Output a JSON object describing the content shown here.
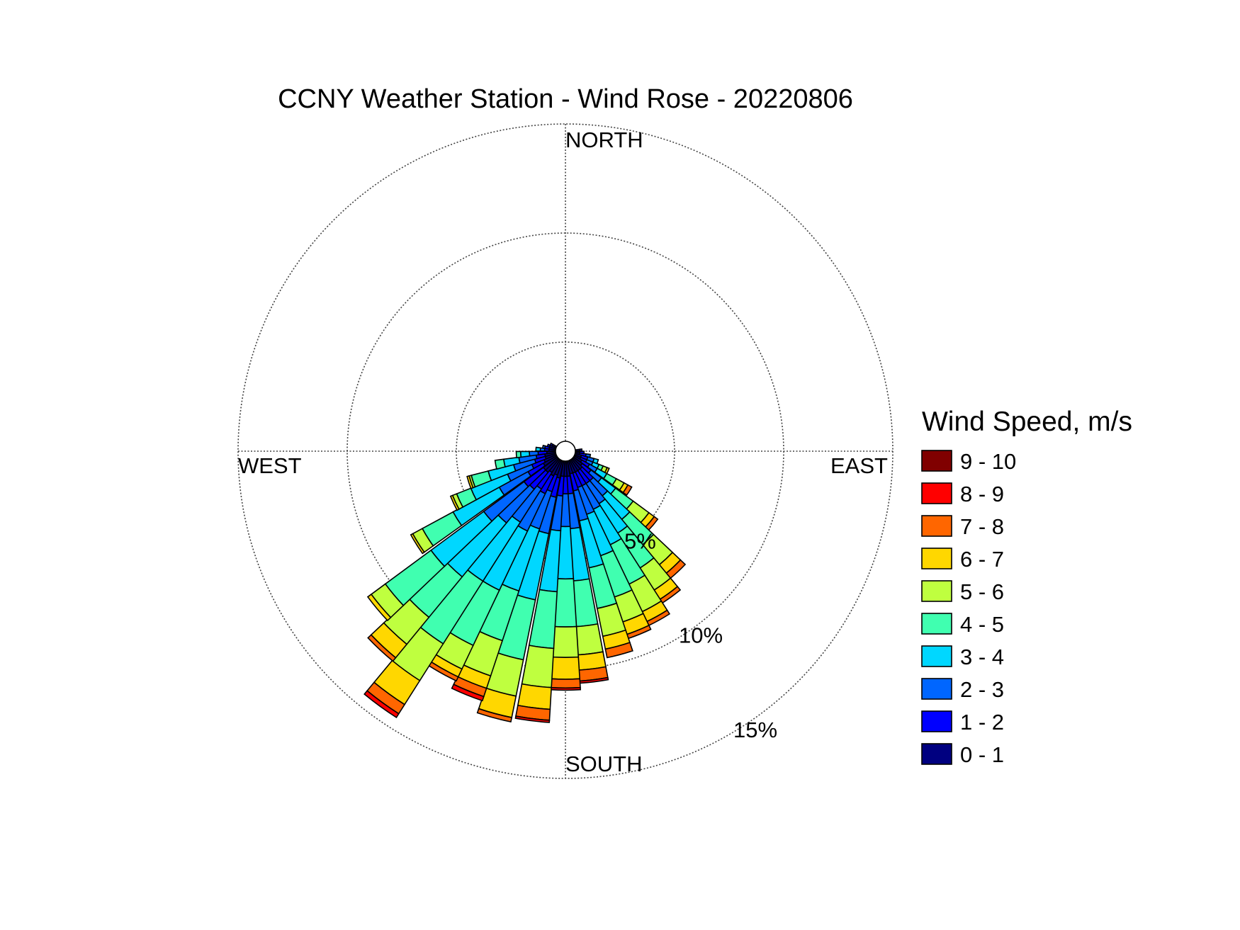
{
  "chart_data": {
    "type": "wind-rose",
    "title": "CCNY Weather Station - Wind Rose - 20220806",
    "directions": {
      "north": "NORTH",
      "south": "SOUTH",
      "east": "EAST",
      "west": "WEST"
    },
    "radial_max": 15,
    "radial_ticks": [
      {
        "value": 5,
        "label": "5%"
      },
      {
        "value": 10,
        "label": "10%"
      },
      {
        "value": 15,
        "label": "15%"
      }
    ],
    "sector_width_deg": 7.2,
    "legend": {
      "title": "Wind Speed, m/s",
      "position": "right",
      "bins": [
        {
          "label": "9 - 10",
          "color": "#800000"
        },
        {
          "label": "8 - 9",
          "color": "#ff0000"
        },
        {
          "label": "7 - 8",
          "color": "#ff6600"
        },
        {
          "label": "6 - 7",
          "color": "#ffd700"
        },
        {
          "label": "5 - 6",
          "color": "#bfff3f"
        },
        {
          "label": "4 - 5",
          "color": "#40ffb0"
        },
        {
          "label": "3 - 4",
          "color": "#00d7ff"
        },
        {
          "label": "2 - 3",
          "color": "#0066ff"
        },
        {
          "label": "1 - 2",
          "color": "#0000ff"
        },
        {
          "label": "0 - 1",
          "color": "#000080"
        }
      ]
    },
    "bin_colors_low_to_high": [
      "#000080",
      "#0000ff",
      "#0066ff",
      "#00d7ff",
      "#40ffb0",
      "#bfff3f",
      "#ffd700",
      "#ff6600",
      "#ff0000",
      "#800000"
    ],
    "sectors_percent_cumulative_by_speed_bin": [
      {
        "direction_deg": 115,
        "cumulative": [
          0.3,
          0.6,
          0.9,
          1.2,
          1.4,
          1.6,
          1.7
        ]
      },
      {
        "direction_deg": 122,
        "cumulative": [
          0.4,
          0.8,
          1.2,
          1.7,
          2.2,
          2.6,
          2.8,
          3.0
        ]
      },
      {
        "direction_deg": 130,
        "cumulative": [
          0.5,
          1.0,
          1.6,
          2.4,
          3.4,
          4.3,
          4.6,
          4.8
        ]
      },
      {
        "direction_deg": 137,
        "cumulative": [
          0.6,
          1.3,
          2.2,
          3.6,
          5.1,
          6.3,
          6.8,
          7.1
        ]
      },
      {
        "direction_deg": 144,
        "cumulative": [
          0.6,
          1.3,
          2.4,
          4.0,
          5.9,
          7.1,
          7.6,
          7.8
        ]
      },
      {
        "direction_deg": 151,
        "cumulative": [
          0.6,
          1.3,
          2.5,
          4.3,
          6.3,
          7.7,
          8.2,
          8.4
        ]
      },
      {
        "direction_deg": 158,
        "cumulative": [
          0.6,
          1.3,
          2.6,
          4.6,
          6.6,
          7.8,
          8.4,
          8.6
        ]
      },
      {
        "direction_deg": 165,
        "cumulative": [
          0.6,
          1.4,
          2.8,
          5.0,
          6.9,
          8.2,
          8.8,
          9.2
        ]
      },
      {
        "direction_deg": 173,
        "cumulative": [
          0.7,
          1.5,
          3.1,
          5.5,
          7.6,
          8.9,
          9.6,
          10.1,
          10.2
        ]
      },
      {
        "direction_deg": 180,
        "cumulative": [
          0.7,
          1.5,
          3.0,
          5.4,
          7.6,
          9.0,
          10.0,
          10.4,
          10.5
        ]
      },
      {
        "direction_deg": 187,
        "cumulative": [
          0.7,
          1.6,
          3.2,
          6.0,
          8.6,
          10.4,
          11.4,
          11.9,
          12.0
        ]
      },
      {
        "direction_deg": 195,
        "cumulative": [
          0.8,
          1.7,
          3.4,
          6.5,
          9.3,
          11.0,
          12.0,
          12.2
        ]
      },
      {
        "direction_deg": 202,
        "cumulative": [
          0.7,
          1.5,
          3.3,
          6.3,
          8.7,
          10.4,
          11.0,
          11.4,
          11.6
        ]
      },
      {
        "direction_deg": 209,
        "cumulative": [
          0.8,
          1.7,
          3.6,
          6.6,
          9.4,
          10.6,
          11.0,
          11.2
        ]
      },
      {
        "direction_deg": 216,
        "cumulative": [
          0.7,
          1.6,
          3.4,
          6.6,
          10.0,
          12.0,
          13.3,
          13.8,
          14.0
        ]
      },
      {
        "direction_deg": 223,
        "cumulative": [
          0.8,
          1.8,
          3.8,
          7.0,
          9.4,
          11.0,
          11.8,
          12.0
        ]
      },
      {
        "direction_deg": 230,
        "cumulative": [
          0.8,
          1.9,
          4.2,
          7.2,
          9.8,
          10.6,
          10.8
        ]
      },
      {
        "direction_deg": 238,
        "cumulative": [
          0.7,
          1.5,
          3.0,
          5.4,
          7.0,
          7.5,
          7.6
        ]
      },
      {
        "direction_deg": 245,
        "cumulative": [
          0.6,
          1.2,
          2.4,
          4.2,
          4.9,
          5.1,
          5.2
        ]
      },
      {
        "direction_deg": 252,
        "cumulative": [
          0.5,
          1.0,
          2.0,
          3.2,
          4.0,
          4.1,
          4.2
        ]
      },
      {
        "direction_deg": 259,
        "cumulative": [
          0.5,
          0.9,
          1.7,
          2.4,
          2.8
        ]
      },
      {
        "direction_deg": 266,
        "cumulative": [
          0.4,
          0.8,
          1.2,
          1.6,
          1.8
        ]
      },
      {
        "direction_deg": 274,
        "cumulative": [
          0.3,
          0.5,
          0.7,
          0.9
        ]
      },
      {
        "direction_deg": 281,
        "cumulative": [
          0.3,
          0.5,
          0.6
        ]
      },
      {
        "direction_deg": 288,
        "cumulative": [
          0.3,
          0.4
        ]
      },
      {
        "direction_deg": 295,
        "cumulative": [
          0.2,
          0.3
        ]
      },
      {
        "direction_deg": 86,
        "cumulative": [
          0.2,
          0.3
        ]
      },
      {
        "direction_deg": 94,
        "cumulative": [
          0.2,
          0.4
        ]
      },
      {
        "direction_deg": 101,
        "cumulative": [
          0.2,
          0.5,
          0.7
        ]
      },
      {
        "direction_deg": 108,
        "cumulative": [
          0.3,
          0.6,
          0.9,
          1.1
        ]
      }
    ]
  }
}
